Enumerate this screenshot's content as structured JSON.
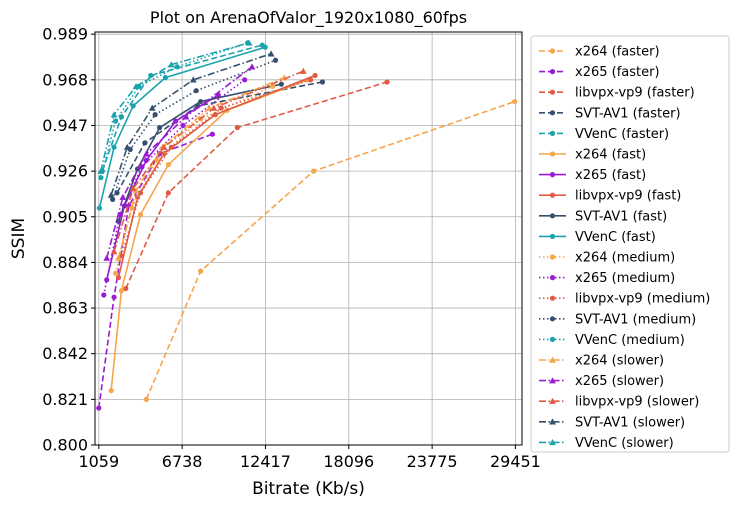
{
  "chart_data": {
    "type": "line",
    "title": "Plot on ArenaOfValor_1920x1080_60fps",
    "xlabel": "Bitrate (Kb/s)",
    "ylabel": "SSIM",
    "xlim": [
      800,
      29900
    ],
    "ylim": [
      0.8,
      0.99
    ],
    "xticks": [
      1059,
      6738,
      12417,
      18096,
      23775,
      29451
    ],
    "xtick_labels": [
      "1059",
      "6738",
      "12417",
      "18096",
      "23775",
      "29451"
    ],
    "yticks": [
      0.8,
      0.821,
      0.842,
      0.863,
      0.884,
      0.905,
      0.926,
      0.947,
      0.968,
      0.989
    ],
    "ytick_labels": [
      "0.800",
      "0.821",
      "0.842",
      "0.863",
      "0.884",
      "0.905",
      "0.926",
      "0.947",
      "0.968",
      "0.989"
    ],
    "grid": true,
    "legend_position": "right",
    "series": [
      {
        "name": "x264 (faster)",
        "color": "#f5a54a",
        "dash": "dashed",
        "marker": "circle",
        "points": [
          [
            4300,
            0.821
          ],
          [
            8000,
            0.88
          ],
          [
            15700,
            0.926
          ],
          [
            29400,
            0.958
          ]
        ]
      },
      {
        "name": "x265 (faster)",
        "color": "#9a1ad6",
        "dash": "dashed",
        "marker": "circle",
        "points": [
          [
            1059,
            0.817
          ],
          [
            2100,
            0.868
          ],
          [
            3100,
            0.91
          ],
          [
            5200,
            0.934
          ],
          [
            8800,
            0.943
          ]
        ]
      },
      {
        "name": "libvpx-vp9 (faster)",
        "color": "#e05a44",
        "dash": "dashed",
        "marker": "circle",
        "points": [
          [
            2900,
            0.872
          ],
          [
            5800,
            0.916
          ],
          [
            10500,
            0.946
          ],
          [
            20700,
            0.967
          ]
        ]
      },
      {
        "name": "SVT-AV1 (faster)",
        "color": "#34506e",
        "dash": "dashed",
        "marker": "circle",
        "points": [
          [
            2300,
            0.916
          ],
          [
            4200,
            0.939
          ],
          [
            7800,
            0.956
          ],
          [
            16300,
            0.967
          ]
        ]
      },
      {
        "name": "VVenC (faster)",
        "color": "#1aa3ad",
        "dash": "dashed",
        "marker": "circle",
        "points": [
          [
            1300,
            0.926
          ],
          [
            2600,
            0.951
          ],
          [
            4600,
            0.97
          ],
          [
            12200,
            0.984
          ]
        ]
      },
      {
        "name": "x264 (fast)",
        "color": "#f5a54a",
        "dash": "solid",
        "marker": "circle",
        "points": [
          [
            1900,
            0.825
          ],
          [
            2600,
            0.871
          ],
          [
            3900,
            0.906
          ],
          [
            5800,
            0.929
          ],
          [
            9800,
            0.954
          ],
          [
            15300,
            0.968
          ]
        ]
      },
      {
        "name": "x265 (fast)",
        "color": "#9a1ad6",
        "dash": "solid",
        "marker": "circle",
        "points": [
          [
            1600,
            0.876
          ],
          [
            2800,
            0.91
          ],
          [
            4300,
            0.931
          ],
          [
            6300,
            0.949
          ],
          [
            9200,
            0.961
          ]
        ]
      },
      {
        "name": "libvpx-vp9 (fast)",
        "color": "#e05a44",
        "dash": "solid",
        "marker": "circle",
        "points": [
          [
            2400,
            0.877
          ],
          [
            3700,
            0.914
          ],
          [
            5500,
            0.934
          ],
          [
            9000,
            0.952
          ],
          [
            15800,
            0.97
          ]
        ]
      },
      {
        "name": "SVT-AV1 (fast)",
        "color": "#34506e",
        "dash": "solid",
        "marker": "circle",
        "points": [
          [
            2400,
            0.903
          ],
          [
            3700,
            0.927
          ],
          [
            5200,
            0.946
          ],
          [
            8000,
            0.958
          ],
          [
            13500,
            0.966
          ]
        ]
      },
      {
        "name": "VVenC (fast)",
        "color": "#1aa3ad",
        "dash": "solid",
        "marker": "circle",
        "points": [
          [
            1100,
            0.909
          ],
          [
            2100,
            0.937
          ],
          [
            3400,
            0.956
          ],
          [
            5600,
            0.969
          ],
          [
            12400,
            0.983
          ]
        ]
      },
      {
        "name": "x264 (medium)",
        "color": "#f5a54a",
        "dash": "dotted",
        "marker": "circle",
        "points": [
          [
            2200,
            0.879
          ],
          [
            3300,
            0.909
          ],
          [
            5000,
            0.931
          ],
          [
            8000,
            0.95
          ],
          [
            12900,
            0.965
          ]
        ]
      },
      {
        "name": "x265 (medium)",
        "color": "#9a1ad6",
        "dash": "dotted",
        "marker": "circle",
        "points": [
          [
            1400,
            0.869
          ],
          [
            2500,
            0.906
          ],
          [
            4000,
            0.928
          ],
          [
            6800,
            0.947
          ],
          [
            11000,
            0.968
          ]
        ]
      },
      {
        "name": "libvpx-vp9 (medium)",
        "color": "#e05a44",
        "dash": "dotted",
        "marker": "circle",
        "points": [
          [
            2600,
            0.887
          ],
          [
            3900,
            0.916
          ],
          [
            6000,
            0.937
          ],
          [
            9400,
            0.955
          ],
          [
            15500,
            0.968
          ]
        ]
      },
      {
        "name": "SVT-AV1 (medium)",
        "color": "#34506e",
        "dash": "dotted",
        "marker": "circle",
        "points": [
          [
            2000,
            0.913
          ],
          [
            3200,
            0.936
          ],
          [
            4900,
            0.952
          ],
          [
            7700,
            0.963
          ],
          [
            13100,
            0.977
          ]
        ]
      },
      {
        "name": "VVenC (medium)",
        "color": "#1aa3ad",
        "dash": "dotted",
        "marker": "circle",
        "points": [
          [
            1200,
            0.923
          ],
          [
            2200,
            0.949
          ],
          [
            3800,
            0.965
          ],
          [
            6400,
            0.974
          ],
          [
            11200,
            0.985
          ]
        ]
      },
      {
        "name": "x264 (slower)",
        "color": "#f5a54a",
        "dash": "dashdot",
        "marker": "triangle",
        "points": [
          [
            2400,
            0.886
          ],
          [
            3600,
            0.917
          ],
          [
            5400,
            0.937
          ],
          [
            8600,
            0.955
          ],
          [
            13700,
            0.969
          ]
        ]
      },
      {
        "name": "x265 (slower)",
        "color": "#9a1ad6",
        "dash": "dashdot",
        "marker": "triangle",
        "points": [
          [
            1600,
            0.886
          ],
          [
            2700,
            0.914
          ],
          [
            4300,
            0.934
          ],
          [
            7000,
            0.951
          ],
          [
            11500,
            0.974
          ]
        ]
      },
      {
        "name": "libvpx-vp9 (slower)",
        "color": "#e05a44",
        "dash": "dashdot",
        "marker": "triangle",
        "points": [
          [
            2100,
            0.889
          ],
          [
            3400,
            0.918
          ],
          [
            5500,
            0.937
          ],
          [
            8900,
            0.955
          ],
          [
            15000,
            0.972
          ]
        ]
      },
      {
        "name": "SVT-AV1 (slower)",
        "color": "#34506e",
        "dash": "dashdot",
        "marker": "triangle",
        "points": [
          [
            1900,
            0.915
          ],
          [
            3000,
            0.937
          ],
          [
            4700,
            0.955
          ],
          [
            7500,
            0.968
          ],
          [
            12800,
            0.98
          ]
        ]
      },
      {
        "name": "VVenC (slower)",
        "color": "#1aa3ad",
        "dash": "dashdot",
        "marker": "triangle",
        "points": [
          [
            1200,
            0.926
          ],
          [
            2100,
            0.952
          ],
          [
            3600,
            0.965
          ],
          [
            6000,
            0.975
          ],
          [
            11300,
            0.985
          ]
        ]
      }
    ]
  }
}
